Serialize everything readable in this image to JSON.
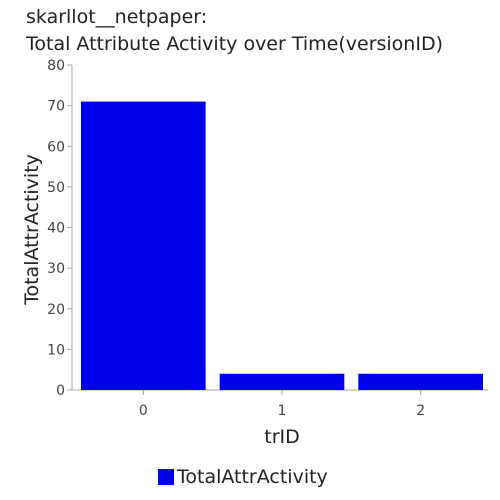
{
  "title_lines": [
    "skarllot__netpaper:",
    "Total Attribute Activity over Time(versionID)"
  ],
  "chart_data": {
    "type": "bar",
    "title": "skarllot__netpaper: Total Attribute Activity over Time(versionID)",
    "categories": [
      "0",
      "1",
      "2"
    ],
    "series": [
      {
        "name": "TotalAttrActivity",
        "values": [
          71,
          4,
          4
        ],
        "color": "#0000ee"
      }
    ],
    "xlabel": "trID",
    "ylabel": "TotalAttrActivity",
    "ylim": [
      0,
      80
    ],
    "yticks": [
      0,
      10,
      20,
      30,
      40,
      50,
      60,
      70,
      80
    ],
    "grid": false,
    "legend": "bottom"
  },
  "legend": {
    "label": "TotalAttrActivity",
    "color": "#0000ee"
  }
}
